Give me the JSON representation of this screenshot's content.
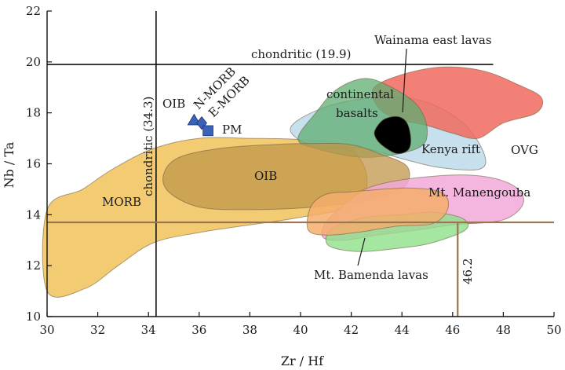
{
  "chart_data": {
    "type": "scatter",
    "xlabel": "Zr / Hf",
    "ylabel": "Nb / Ta",
    "xlim": [
      30,
      50
    ],
    "ylim": [
      10,
      22
    ],
    "xticks": [
      "30",
      "32",
      "34",
      "36",
      "38",
      "40",
      "42",
      "44",
      "46",
      "48",
      "50"
    ],
    "yticks": [
      "10",
      "12",
      "14",
      "16",
      "18",
      "20",
      "22"
    ],
    "reference_lines": [
      {
        "name": "chondritic-nbta",
        "label": "chondritic (19.9)",
        "orientation": "horizontal",
        "value": 19.9,
        "from": 30,
        "to": 47.6
      },
      {
        "name": "chondritic-zrhf",
        "label": "chondritic (34.3)",
        "orientation": "vertical",
        "value": 34.3,
        "from": 10,
        "to": 22
      },
      {
        "name": "nbta-13-7",
        "label": "",
        "orientation": "horizontal",
        "value": 13.7,
        "from": 30,
        "to": 50
      },
      {
        "name": "zrhf-46-2",
        "label": "46.2",
        "orientation": "vertical",
        "value": 46.2,
        "from": 10,
        "to": 13.7
      }
    ],
    "fields": [
      {
        "name": "MORB",
        "label": "MORB",
        "color": "#f0c25a",
        "points": [
          [
            30,
            14.2
          ],
          [
            31.4,
            15.0
          ],
          [
            32.6,
            15.8
          ],
          [
            34.2,
            16.6
          ],
          [
            36,
            17.0
          ],
          [
            38,
            17.0
          ],
          [
            40,
            16.95
          ],
          [
            41.8,
            16.7
          ],
          [
            42.6,
            15.6
          ],
          [
            42.2,
            14.4
          ],
          [
            40,
            13.9
          ],
          [
            38,
            13.6
          ],
          [
            36,
            13.3
          ],
          [
            34.2,
            12.9
          ],
          [
            32.8,
            12.0
          ],
          [
            31.5,
            11.1
          ],
          [
            30,
            11.0
          ]
        ]
      },
      {
        "name": "OIB",
        "label": "OIB",
        "color": "#c0954a",
        "points": [
          [
            34.6,
            15.6
          ],
          [
            35.2,
            16.25
          ],
          [
            36.8,
            16.6
          ],
          [
            38.8,
            16.75
          ],
          [
            40.6,
            16.8
          ],
          [
            42,
            16.75
          ],
          [
            43.1,
            16.4
          ],
          [
            44.2,
            15.9
          ],
          [
            44.1,
            15.1
          ],
          [
            42.8,
            14.6
          ],
          [
            40.5,
            14.3
          ],
          [
            38,
            14.2
          ],
          [
            36,
            14.3
          ],
          [
            34.8,
            14.9
          ]
        ]
      },
      {
        "name": "continental-basalts",
        "label": "continental basalts",
        "color": "#5fae72",
        "points": [
          [
            39.9,
            17.0
          ],
          [
            40.6,
            18.0
          ],
          [
            41.4,
            18.9
          ],
          [
            42.5,
            19.35
          ],
          [
            43.5,
            19.05
          ],
          [
            44.6,
            18.3
          ],
          [
            45,
            17.3
          ],
          [
            44.6,
            16.6
          ],
          [
            42.6,
            16.25
          ],
          [
            40.6,
            16.6
          ]
        ]
      },
      {
        "name": "Kenya-rift",
        "label": "Kenya rift",
        "color": "#b8d8e8",
        "points": [
          [
            39.6,
            17.4
          ],
          [
            40.9,
            18.2
          ],
          [
            42.9,
            18.6
          ],
          [
            44.7,
            18.5
          ],
          [
            46.3,
            17.7
          ],
          [
            47.2,
            16.5
          ],
          [
            47.1,
            15.8
          ],
          [
            45.5,
            15.85
          ],
          [
            44.0,
            16.2
          ],
          [
            42.5,
            16.6
          ],
          [
            40.5,
            16.7
          ]
        ]
      },
      {
        "name": "OVG",
        "label": "OVG",
        "color": "#f06a5e",
        "points": [
          [
            42.9,
            19.0
          ],
          [
            44.0,
            19.5
          ],
          [
            45.6,
            19.8
          ],
          [
            47.2,
            19.65
          ],
          [
            48.6,
            19.1
          ],
          [
            49.5,
            18.6
          ],
          [
            49.3,
            18.0
          ],
          [
            48.0,
            17.6
          ],
          [
            47.0,
            17.0
          ],
          [
            46.0,
            17.2
          ],
          [
            45.0,
            17.5
          ],
          [
            43.7,
            17.8
          ],
          [
            43.0,
            18.3
          ]
        ]
      },
      {
        "name": "Wainama-east-lavas",
        "label": "Wainama east lavas",
        "color": "#000000",
        "points": [
          [
            42.95,
            17.35
          ],
          [
            43.3,
            17.75
          ],
          [
            43.85,
            17.85
          ],
          [
            44.2,
            17.6
          ],
          [
            44.35,
            17.0
          ],
          [
            44.25,
            16.55
          ],
          [
            43.8,
            16.4
          ],
          [
            43.25,
            16.7
          ],
          [
            42.95,
            17.05
          ]
        ]
      },
      {
        "name": "Mt-Manengouba",
        "label": "Mt. Manengouba",
        "color": "#f2a8d8",
        "points": [
          [
            41.9,
            14.55
          ],
          [
            42.8,
            15.1
          ],
          [
            44.6,
            15.45
          ],
          [
            46.8,
            15.55
          ],
          [
            48.3,
            15.2
          ],
          [
            48.8,
            14.5
          ],
          [
            48.0,
            13.8
          ],
          [
            46.0,
            13.6
          ],
          [
            44.6,
            13.4
          ],
          [
            43.0,
            13.2
          ],
          [
            41.7,
            13.0
          ],
          [
            40.9,
            13.1
          ],
          [
            41.0,
            13.7
          ]
        ]
      },
      {
        "name": "Mt-Bamenda-lavas",
        "label": "Mt. Bamenda lavas",
        "color": "#8fe08a",
        "points": [
          [
            41.0,
            13.0
          ],
          [
            41.3,
            13.5
          ],
          [
            42.6,
            13.9
          ],
          [
            44.0,
            14.0
          ],
          [
            45.2,
            14.1
          ],
          [
            46.4,
            13.85
          ],
          [
            46.5,
            13.4
          ],
          [
            45.2,
            12.9
          ],
          [
            44.0,
            12.7
          ],
          [
            42.4,
            12.55
          ],
          [
            41.3,
            12.7
          ]
        ]
      },
      {
        "name": "Mt-Manengouba-tan",
        "label": "",
        "color": "#f4ae6c",
        "points": [
          [
            40.4,
            14.3
          ],
          [
            41,
            14.8
          ],
          [
            42,
            14.9
          ],
          [
            44.2,
            15.05
          ],
          [
            45.6,
            14.85
          ],
          [
            45.8,
            14.2
          ],
          [
            45.2,
            13.65
          ],
          [
            43.8,
            13.55
          ],
          [
            42.2,
            13.3
          ],
          [
            41,
            13.2
          ],
          [
            40.3,
            13.4
          ]
        ]
      }
    ],
    "points": [
      {
        "name": "N-MORB",
        "label": "N-MORB",
        "marker": "triangle",
        "color": "#3a62b8",
        "x": 35.8,
        "y": 17.7
      },
      {
        "name": "E-MORB",
        "label": "E-MORB",
        "marker": "diamond",
        "color": "#3a62b8",
        "x": 36.1,
        "y": 17.6
      },
      {
        "name": "PM",
        "label": "PM",
        "marker": "square",
        "color": "#3a62b8",
        "x": 36.35,
        "y": 17.3
      }
    ],
    "text_labels": {
      "oib_marker": "OIB",
      "kenya": "Kenya rift",
      "ovg": "OVG",
      "wainama": "Wainama east lavas",
      "continental_1": "continental",
      "continental_2": "basalts",
      "manengouba": "Mt. Manengouba",
      "bamenda": "Mt. Bamenda lavas",
      "morb": "MORB",
      "oib": "OIB",
      "pm": "PM",
      "nmorb": "N-MORB",
      "emorb": "E-MORB",
      "chond_h": "chondritic (19.9)",
      "chond_v": "chondritic (34.3)",
      "val_462": "46.2"
    }
  }
}
